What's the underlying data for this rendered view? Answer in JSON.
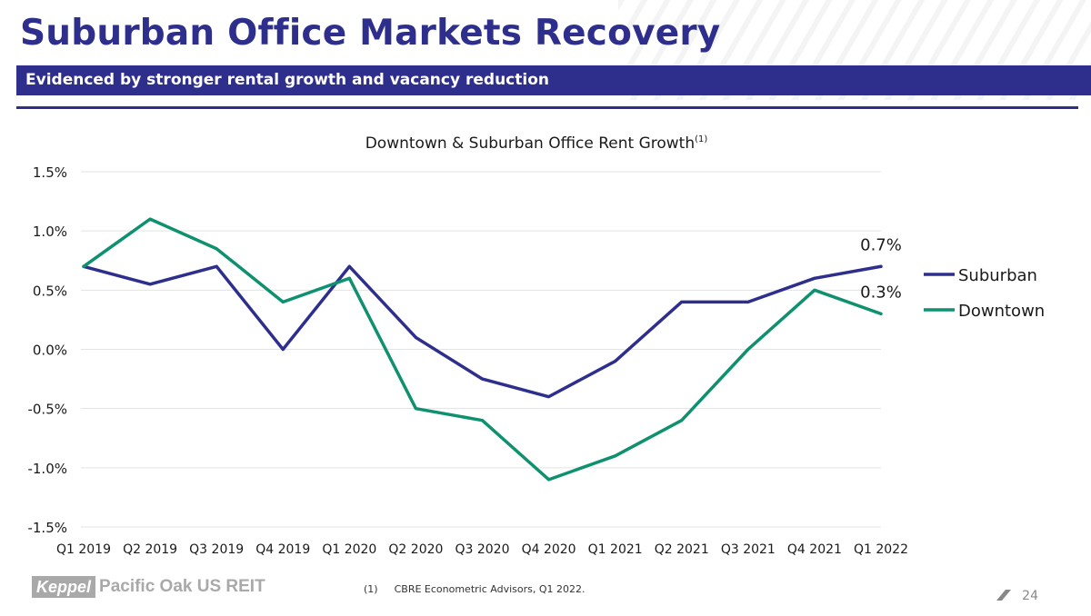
{
  "header": {
    "title": "Suburban Office Markets Recovery",
    "subtitle": "Evidenced by stronger rental growth and vacancy reduction"
  },
  "chart_data": {
    "type": "line",
    "title": "Downtown & Suburban Office Rent Growth",
    "title_superscript": "(1)",
    "categories": [
      "Q1 2019",
      "Q2 2019",
      "Q3 2019",
      "Q4 2019",
      "Q1 2020",
      "Q2 2020",
      "Q3 2020",
      "Q4 2020",
      "Q1 2021",
      "Q2 2021",
      "Q3 2021",
      "Q4 2021",
      "Q1 2022"
    ],
    "ylim": [
      -1.5,
      1.5
    ],
    "yticks": [
      1.5,
      1.0,
      0.5,
      0.0,
      -0.5,
      -1.0,
      -1.5
    ],
    "ytick_labels": [
      "1.5%",
      "1.0%",
      "0.5%",
      "0.0%",
      "-0.5%",
      "-1.0%",
      "-1.5%"
    ],
    "grid": true,
    "legend_position": "right",
    "series": [
      {
        "name": "Suburban",
        "color": "#2e2f8c",
        "values": [
          0.7,
          0.55,
          0.7,
          0.0,
          0.7,
          0.1,
          -0.25,
          -0.4,
          -0.1,
          0.4,
          0.4,
          0.6,
          0.7
        ],
        "end_label": "0.7%"
      },
      {
        "name": "Downtown",
        "color": "#0f9170",
        "values": [
          0.7,
          1.1,
          0.85,
          0.4,
          0.6,
          -0.5,
          -0.6,
          -1.1,
          -0.9,
          -0.6,
          0.0,
          0.5,
          0.3
        ],
        "end_label": "0.3%"
      }
    ]
  },
  "footer": {
    "logo_mark": "Keppel",
    "logo_text": "Pacific Oak US REIT",
    "footnote_marker": "(1)",
    "footnote_text": "CBRE Econometric Advisors, Q1 2022.",
    "page_number": "24"
  }
}
